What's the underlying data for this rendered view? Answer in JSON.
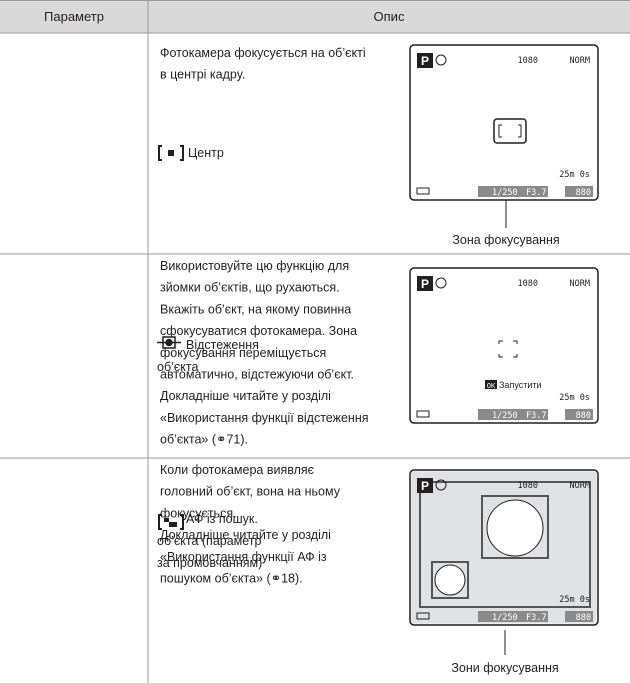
{
  "table": {
    "header": [
      "Параметр",
      "Опис"
    ],
    "rows": [
      {
        "option": [
          "Центр"
        ],
        "description": [
          "Фотокамера фокусується на об’єкті",
          "в центрі кадру."
        ],
        "screen": {
          "mode": "P",
          "video": "1080",
          "quality": "NORM",
          "time": "25m 0s",
          "shutter": "1/250",
          "aperture": "F3.7",
          "shots": "880"
        },
        "caption": "Зона фокусування"
      },
      {
        "option": [
          "Відстеження",
          "об’єкта"
        ],
        "description": [
          "Використовуйте цю функцію для",
          "зйомки об’єктів, що рухаються.",
          "Вкажіть об’єкт, на якому повинна",
          "сфокусуватися фотокамера. Зона",
          "фокусування переміщується",
          "автоматично, відстежуючи об’єкт.",
          "Докладніше читайте у розділі",
          "«Використання функції відстеження",
          "об’єкта» (⚭71)."
        ],
        "screen": {
          "mode": "P",
          "video": "1080",
          "quality": "NORM",
          "time": "25m 0s",
          "shutter": "1/250",
          "aperture": "F3.7",
          "shots": "880",
          "ok": "OK",
          "start": "Запустити"
        }
      },
      {
        "option": [
          "АФ із пошук.",
          "об’єкта (параметр",
          "за промовчанням)"
        ],
        "description": [
          "Коли фотокамера виявляє",
          "головний об’єкт, вона на ньому",
          "фокусується.",
          "Докладніше читайте у розділі",
          "«Використання функції АФ із",
          "пошуком об’єкта» (⚭18)."
        ],
        "screen": {
          "mode": "P",
          "video": "1080",
          "quality": "NORM",
          "time": "25m 0s",
          "shutter": "1/250",
          "aperture": "F3.7",
          "shots": "880"
        },
        "caption": "Зони фокусування"
      }
    ]
  }
}
